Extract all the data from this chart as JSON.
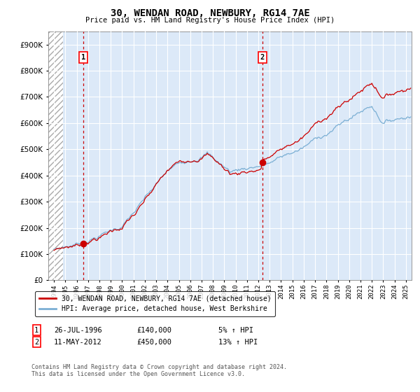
{
  "title": "30, WENDAN ROAD, NEWBURY, RG14 7AE",
  "subtitle": "Price paid vs. HM Land Registry's House Price Index (HPI)",
  "ylim": [
    0,
    950000
  ],
  "yticks": [
    0,
    100000,
    200000,
    300000,
    400000,
    500000,
    600000,
    700000,
    800000,
    900000
  ],
  "ytick_labels": [
    "£0",
    "£100K",
    "£200K",
    "£300K",
    "£400K",
    "£500K",
    "£600K",
    "£700K",
    "£800K",
    "£900K"
  ],
  "sale1_date": 1996.57,
  "sale1_price": 140000,
  "sale1_label": "1",
  "sale2_date": 2012.36,
  "sale2_price": 450000,
  "sale2_label": "2",
  "legend_line1": "30, WENDAN ROAD, NEWBURY, RG14 7AE (detached house)",
  "legend_line2": "HPI: Average price, detached house, West Berkshire",
  "footer": "Contains HM Land Registry data © Crown copyright and database right 2024.\nThis data is licensed under the Open Government Licence v3.0.",
  "background_color": "#dce9f8",
  "grid_color": "#ffffff",
  "line_red": "#cc0000",
  "line_blue": "#7bafd4",
  "xlim_start": 1993.5,
  "xlim_end": 2025.5,
  "hatch_end": 1994.8
}
